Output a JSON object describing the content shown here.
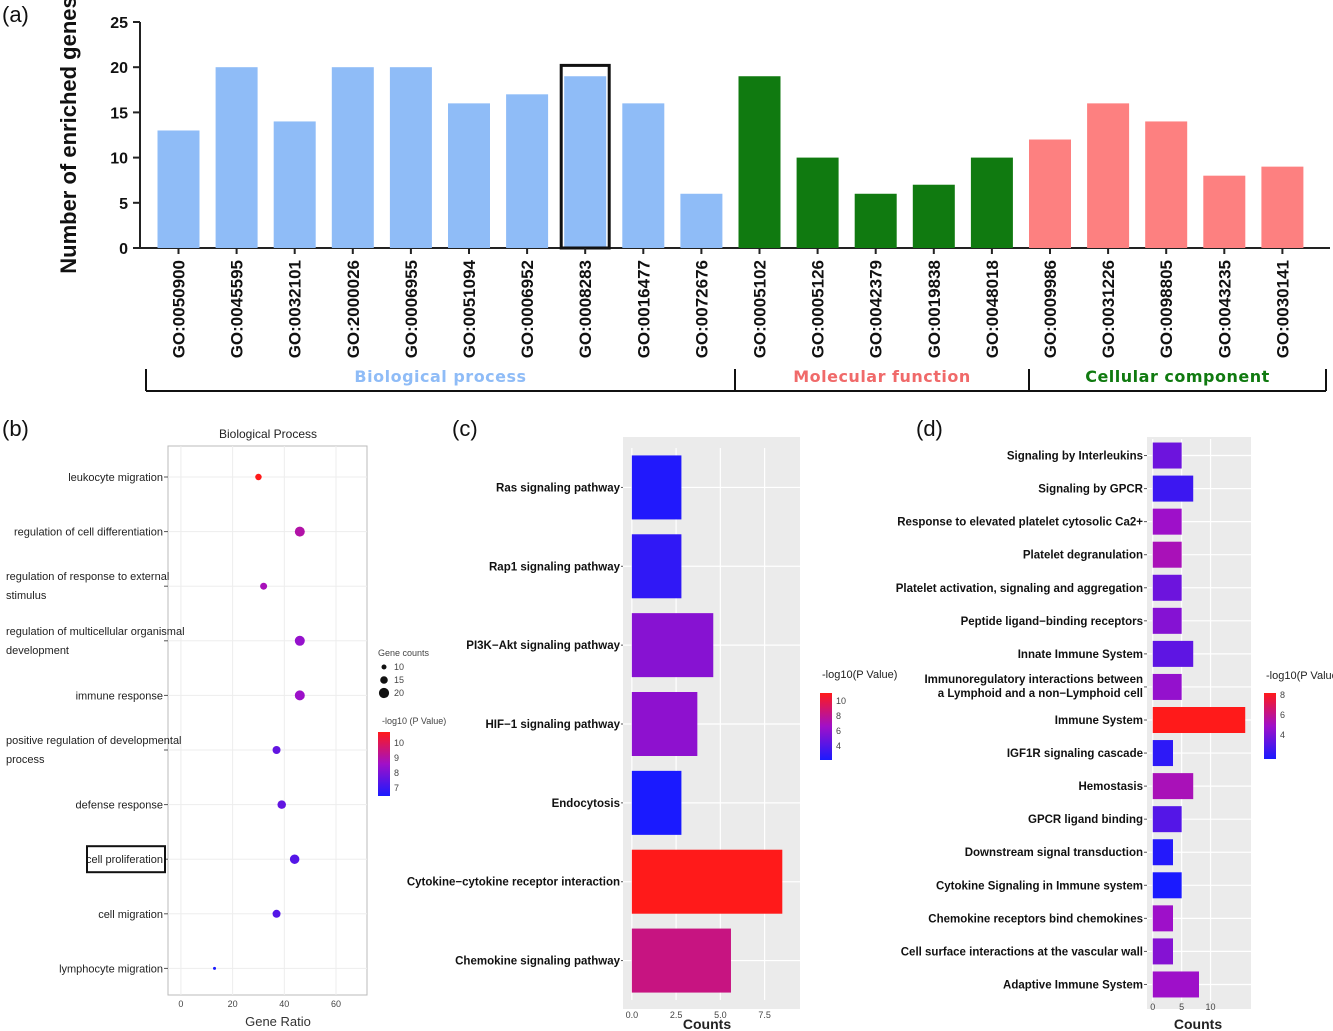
{
  "panels": {
    "a": "(a)",
    "b": "(b)",
    "c": "(c)",
    "d": "(d)"
  },
  "colors": {
    "biological": "#8fbcf7",
    "molecular": "#107a10",
    "cellular": "#fd8080",
    "biological_label": "#8fbcf7",
    "molecular_label": "#f06a6a",
    "cellular_label": "#107a10",
    "low": "#1a1aff",
    "high": "#ff1a1a",
    "panel_bg": "#ebebeb"
  },
  "chart_data": [
    {
      "type": "bar",
      "ylabel": "Number of enriched genes",
      "ylim": [
        0,
        25
      ],
      "yticks": [
        "0",
        "5",
        "10",
        "15",
        "20",
        "25"
      ],
      "categories": [
        "GO:0050900",
        "GO:0045595",
        "GO:0032101",
        "GO:2000026",
        "GO:0006955",
        "GO:0051094",
        "GO:0006952",
        "GO:0008283",
        "GO:0016477",
        "GO:0072676",
        "GO:0005102",
        "GO:0005126",
        "GO:0042379",
        "GO:0019838",
        "GO:0048018",
        "GO:0009986",
        "GO:0031226",
        "GO:0098805",
        "GO:0043235",
        "GO:0030141"
      ],
      "values": [
        13,
        20,
        14,
        20,
        20,
        16,
        17,
        19,
        16,
        6,
        19,
        10,
        6,
        7,
        10,
        12,
        16,
        14,
        8,
        9
      ],
      "groups": [
        {
          "name": "Biological process",
          "count": 10
        },
        {
          "name": "Molecular function",
          "count": 5
        },
        {
          "name": "Cellular component",
          "count": 5
        }
      ],
      "highlighted": "GO:0008283"
    },
    {
      "type": "scatter",
      "title": "Biological Process",
      "xlabel": "Gene Ratio",
      "xlim": [
        -5,
        72
      ],
      "xticks": [
        "0",
        "20",
        "40",
        "60"
      ],
      "categories": [
        "leukocyte migration",
        "regulation of cell differentiation",
        "regulation of response to external stimulus",
        "regulation of multicellular organismal development",
        "immune response",
        "positive regulation of developmental process",
        "defense response",
        "cell proliferation",
        "cell migration",
        "lymphocyte migration"
      ],
      "category_lines": [
        [
          "leukocyte migration"
        ],
        [
          "regulation of cell differentiation"
        ],
        [
          "regulation of response to external",
          "stimulus"
        ],
        [
          "regulation of multicellular organismal",
          "development"
        ],
        [
          "immune response"
        ],
        [
          "positive regulation of developmental",
          "process"
        ],
        [
          "defense response"
        ],
        [
          "cell proliferation"
        ],
        [
          "cell migration"
        ],
        [
          "lymphocyte migration"
        ]
      ],
      "x": [
        30,
        46,
        32,
        46,
        46,
        37,
        39,
        44,
        37,
        13
      ],
      "size": [
        13,
        20,
        14,
        20,
        20,
        16,
        17,
        19,
        16,
        6
      ],
      "color_value": [
        10.5,
        9,
        8.8,
        8.5,
        8.6,
        7.8,
        7.8,
        7.6,
        7.6,
        6.8
      ],
      "highlighted": "cell proliferation",
      "size_legend": {
        "title": "Gene counts",
        "labels": [
          "10",
          "15",
          "20"
        ]
      },
      "color_legend": {
        "title": "-log10 (P Value)",
        "labels": [
          "10",
          "9",
          "8",
          "7"
        ],
        "range": [
          6.8,
          10.5
        ]
      }
    },
    {
      "type": "bar",
      "orientation": "horizontal",
      "xlabel": "Counts",
      "xlim": [
        -0.5,
        9.5
      ],
      "xticks": [
        "0.0",
        "2.5",
        "5.0",
        "7.5"
      ],
      "categories": [
        "Ras signaling pathway",
        "Rap1 signaling pathway",
        "PI3K−Akt signaling pathway",
        "HIF−1 signaling pathway",
        "Endocytosis",
        "Cytokine−cytokine receptor interaction",
        "Chemokine signaling pathway"
      ],
      "values": [
        2.8,
        2.8,
        4.6,
        3.7,
        2.8,
        8.5,
        5.6
      ],
      "color_value": [
        3.6,
        4.0,
        6.4,
        6.6,
        3.4,
        10.8,
        8.6
      ],
      "color_legend": {
        "title": "-log10(P Value)",
        "labels": [
          "10",
          "8",
          "6",
          "4"
        ],
        "range": [
          3.4,
          10.8
        ]
      }
    },
    {
      "type": "bar",
      "orientation": "horizontal",
      "xlabel": "Counts",
      "xlim": [
        -1,
        17
      ],
      "xticks": [
        "0",
        "5",
        "10"
      ],
      "categories": [
        "Signaling by Interleukins",
        "Signaling by GPCR",
        "Response to elevated platelet cytosolic Ca2+",
        "Platelet degranulation",
        "Platelet activation, signaling and aggregation",
        "Peptide ligand−binding receptors",
        "Innate Immune System",
        "Immunoregulatory interactions between a Lymphoid and a non−Lymphoid cell",
        "Immune System",
        "IGF1R signaling cascade",
        "Hemostasis",
        "GPCR ligand binding",
        "Downstream signal transduction",
        "Cytokine Signaling in Immune system",
        "Chemokine receptors bind chemokines",
        "Cell surface interactions at the vascular wall",
        "Adaptive Immune System"
      ],
      "category_lines": [
        [
          "Signaling by Interleukins"
        ],
        [
          "Signaling by GPCR"
        ],
        [
          "Response to elevated platelet cytosolic Ca2+"
        ],
        [
          "Platelet degranulation"
        ],
        [
          "Platelet activation, signaling and aggregation"
        ],
        [
          "Peptide ligand−binding receptors"
        ],
        [
          "Innate Immune System"
        ],
        [
          "Immunoregulatory interactions between",
          "a Lymphoid and a non−Lymphoid cell"
        ],
        [
          "Immune System"
        ],
        [
          "IGF1R signaling cascade"
        ],
        [
          "Hemostasis"
        ],
        [
          "GPCR ligand binding"
        ],
        [
          "Downstream signal transduction"
        ],
        [
          "Cytokine Signaling in Immune system"
        ],
        [
          "Chemokine receptors bind chemokines"
        ],
        [
          "Cell surface interactions at the vascular wall"
        ],
        [
          "Adaptive Immune System"
        ]
      ],
      "values": [
        5,
        7,
        5,
        5,
        5,
        5,
        7,
        5,
        16,
        3.5,
        7,
        5,
        3.5,
        5,
        3.5,
        3.5,
        8
      ],
      "color_value": [
        4.5,
        3.5,
        5.5,
        5.8,
        4.5,
        5.0,
        4.2,
        5.3,
        8.3,
        3.2,
        5.8,
        4.0,
        3.0,
        2.8,
        5.5,
        5.0,
        5.5
      ],
      "color_legend": {
        "title": "-log10(P Value)",
        "labels": [
          "8",
          "6",
          "4"
        ],
        "range": [
          2.8,
          8.3
        ]
      }
    }
  ]
}
